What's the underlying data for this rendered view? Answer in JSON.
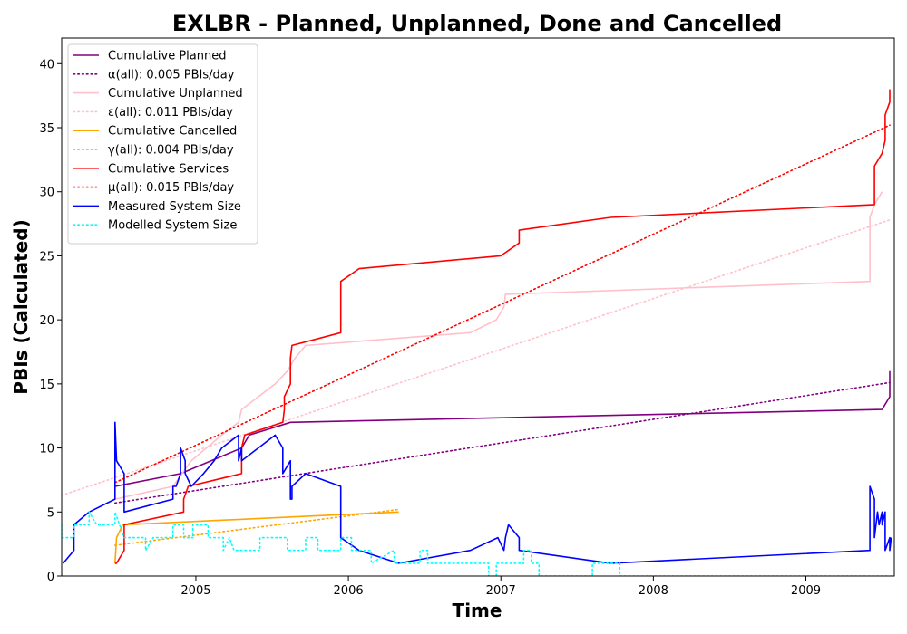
{
  "chart_data": {
    "type": "line",
    "title": "EXLBR - Planned, Unplanned, Done  and Cancelled",
    "xlabel": "Time",
    "ylabel": "PBIs (Calculated)",
    "xlim": [
      2004.12,
      2009.58
    ],
    "ylim": [
      0,
      42
    ],
    "x_ticks": [
      2005,
      2006,
      2007,
      2008,
      2009
    ],
    "x_tick_labels": [
      "2005",
      "2006",
      "2007",
      "2008",
      "2009"
    ],
    "y_ticks": [
      0,
      5,
      10,
      15,
      20,
      25,
      30,
      35,
      40
    ],
    "y_tick_labels": [
      "0",
      "5",
      "10",
      "15",
      "20",
      "25",
      "30",
      "35",
      "40"
    ],
    "grid": false,
    "legend_position": "top-left",
    "series": [
      {
        "name": "Cumulative Planned",
        "color": "#800080",
        "style": "solid",
        "points": [
          [
            2004.47,
            7
          ],
          [
            2004.9,
            8
          ],
          [
            2005.3,
            10
          ],
          [
            2005.35,
            11
          ],
          [
            2005.62,
            12
          ],
          [
            2009.5,
            13
          ],
          [
            2009.55,
            14
          ],
          [
            2009.55,
            16
          ]
        ]
      },
      {
        "name": "α(all): 0.005 PBIs/day",
        "color": "#800080",
        "style": "dotted",
        "points": [
          [
            2004.47,
            5.7
          ],
          [
            2009.55,
            15.1
          ]
        ]
      },
      {
        "name": "Cumulative Unplanned",
        "color": "#ffc0cb",
        "style": "solid",
        "points": [
          [
            2004.47,
            6
          ],
          [
            2004.85,
            7
          ],
          [
            2004.97,
            9
          ],
          [
            2005.17,
            11
          ],
          [
            2005.28,
            12
          ],
          [
            2005.3,
            13
          ],
          [
            2005.52,
            15
          ],
          [
            2005.6,
            16
          ],
          [
            2005.65,
            17
          ],
          [
            2005.72,
            18
          ],
          [
            2006.8,
            19
          ],
          [
            2006.97,
            20
          ],
          [
            2007.02,
            21
          ],
          [
            2007.03,
            22
          ],
          [
            2009.42,
            23
          ],
          [
            2009.42,
            28
          ],
          [
            2009.45,
            29
          ],
          [
            2009.5,
            30
          ]
        ]
      },
      {
        "name": "ε(all): 0.011 PBIs/day",
        "color": "#ffc0cb",
        "style": "dotted",
        "points": [
          [
            2004.12,
            6.3
          ],
          [
            2009.55,
            27.8
          ]
        ]
      },
      {
        "name": "Cumulative Cancelled",
        "color": "#ffa500",
        "style": "solid",
        "points": [
          [
            2004.47,
            1
          ],
          [
            2004.48,
            3
          ],
          [
            2004.52,
            4
          ],
          [
            2006.33,
            5
          ]
        ]
      },
      {
        "name": "γ(all): 0.004 PBIs/day",
        "color": "#ffa500",
        "style": "dotted",
        "points": [
          [
            2004.47,
            2.4
          ],
          [
            2006.33,
            5.2
          ]
        ]
      },
      {
        "name": "Cumulative Services",
        "color": "#ff0000",
        "style": "solid",
        "points": [
          [
            2004.47,
            1
          ],
          [
            2004.48,
            1
          ],
          [
            2004.53,
            2
          ],
          [
            2004.53,
            4
          ],
          [
            2004.92,
            5
          ],
          [
            2004.92,
            6
          ],
          [
            2004.95,
            7
          ],
          [
            2005.3,
            8
          ],
          [
            2005.3,
            10
          ],
          [
            2005.32,
            11
          ],
          [
            2005.57,
            12
          ],
          [
            2005.58,
            13
          ],
          [
            2005.58,
            14
          ],
          [
            2005.62,
            15
          ],
          [
            2005.62,
            17
          ],
          [
            2005.63,
            18
          ],
          [
            2005.95,
            19
          ],
          [
            2005.95,
            20
          ],
          [
            2005.95,
            23
          ],
          [
            2006.07,
            24
          ],
          [
            2007.0,
            25
          ],
          [
            2007.12,
            26
          ],
          [
            2007.12,
            27
          ],
          [
            2007.72,
            28
          ],
          [
            2009.45,
            29
          ],
          [
            2009.45,
            30
          ],
          [
            2009.45,
            32
          ],
          [
            2009.5,
            33
          ],
          [
            2009.52,
            34
          ],
          [
            2009.52,
            36
          ],
          [
            2009.55,
            37
          ],
          [
            2009.55,
            38
          ]
        ]
      },
      {
        "name": "μ(all): 0.015 PBIs/day",
        "color": "#ff0000",
        "style": "dotted",
        "points": [
          [
            2004.47,
            7.3
          ],
          [
            2009.55,
            35.2
          ]
        ]
      },
      {
        "name": "Measured System Size",
        "color": "#0000ff",
        "style": "solid",
        "points": [
          [
            2004.13,
            1
          ],
          [
            2004.2,
            2
          ],
          [
            2004.2,
            4
          ],
          [
            2004.3,
            5
          ],
          [
            2004.47,
            6
          ],
          [
            2004.47,
            12
          ],
          [
            2004.48,
            9
          ],
          [
            2004.53,
            8
          ],
          [
            2004.53,
            5
          ],
          [
            2004.85,
            6
          ],
          [
            2004.85,
            7
          ],
          [
            2004.87,
            7
          ],
          [
            2004.9,
            8
          ],
          [
            2004.9,
            10
          ],
          [
            2004.93,
            9
          ],
          [
            2004.93,
            8
          ],
          [
            2004.97,
            7
          ],
          [
            2005.05,
            8
          ],
          [
            2005.12,
            9
          ],
          [
            2005.17,
            10
          ],
          [
            2005.28,
            11
          ],
          [
            2005.28,
            9
          ],
          [
            2005.3,
            10
          ],
          [
            2005.3,
            9
          ],
          [
            2005.52,
            11
          ],
          [
            2005.57,
            10
          ],
          [
            2005.57,
            8
          ],
          [
            2005.62,
            9
          ],
          [
            2005.62,
            6
          ],
          [
            2005.63,
            6
          ],
          [
            2005.63,
            7
          ],
          [
            2005.72,
            8
          ],
          [
            2005.95,
            7
          ],
          [
            2005.95,
            6
          ],
          [
            2005.95,
            3
          ],
          [
            2006.07,
            2
          ],
          [
            2006.33,
            1
          ],
          [
            2006.8,
            2
          ],
          [
            2006.98,
            3
          ],
          [
            2007.02,
            2
          ],
          [
            2007.03,
            3
          ],
          [
            2007.05,
            4
          ],
          [
            2007.12,
            3
          ],
          [
            2007.12,
            2
          ],
          [
            2007.72,
            1
          ],
          [
            2009.42,
            2
          ],
          [
            2009.42,
            7
          ],
          [
            2009.45,
            6
          ],
          [
            2009.45,
            3
          ],
          [
            2009.47,
            5
          ],
          [
            2009.48,
            4
          ],
          [
            2009.5,
            5
          ],
          [
            2009.5,
            4
          ],
          [
            2009.52,
            5
          ],
          [
            2009.52,
            2
          ],
          [
            2009.55,
            3
          ],
          [
            2009.55,
            2
          ],
          [
            2009.56,
            3
          ]
        ]
      },
      {
        "name": "Modelled System Size",
        "color": "#00ffff",
        "style": "dotted",
        "points": [
          [
            2004.12,
            4
          ],
          [
            2004.12,
            3
          ],
          [
            2004.2,
            3
          ],
          [
            2004.2,
            4
          ],
          [
            2004.3,
            4
          ],
          [
            2004.3,
            5
          ],
          [
            2004.35,
            4
          ],
          [
            2004.47,
            4
          ],
          [
            2004.47,
            5
          ],
          [
            2004.53,
            3
          ],
          [
            2004.67,
            3
          ],
          [
            2004.67,
            2
          ],
          [
            2004.72,
            3
          ],
          [
            2004.85,
            3
          ],
          [
            2004.85,
            4
          ],
          [
            2004.92,
            4
          ],
          [
            2004.92,
            3
          ],
          [
            2004.98,
            3
          ],
          [
            2004.98,
            4
          ],
          [
            2005.08,
            4
          ],
          [
            2005.08,
            3
          ],
          [
            2005.18,
            3
          ],
          [
            2005.18,
            2
          ],
          [
            2005.22,
            3
          ],
          [
            2005.25,
            2
          ],
          [
            2005.42,
            2
          ],
          [
            2005.42,
            3
          ],
          [
            2005.6,
            3
          ],
          [
            2005.6,
            2
          ],
          [
            2005.72,
            2
          ],
          [
            2005.72,
            3
          ],
          [
            2005.8,
            3
          ],
          [
            2005.8,
            2
          ],
          [
            2005.95,
            2
          ],
          [
            2005.95,
            3
          ],
          [
            2006.02,
            3
          ],
          [
            2006.02,
            2
          ],
          [
            2006.15,
            2
          ],
          [
            2006.15,
            1
          ],
          [
            2006.3,
            2
          ],
          [
            2006.3,
            1
          ],
          [
            2006.47,
            1
          ],
          [
            2006.47,
            2
          ],
          [
            2006.52,
            2
          ],
          [
            2006.52,
            1
          ],
          [
            2006.92,
            1
          ],
          [
            2006.92,
            0
          ],
          [
            2006.97,
            0
          ],
          [
            2006.97,
            1
          ],
          [
            2007.15,
            1
          ],
          [
            2007.15,
            2
          ],
          [
            2007.2,
            2
          ],
          [
            2007.2,
            1
          ],
          [
            2007.25,
            1
          ],
          [
            2007.25,
            0
          ],
          [
            2007.6,
            0
          ],
          [
            2007.6,
            1
          ],
          [
            2007.78,
            1
          ],
          [
            2007.78,
            0
          ],
          [
            2009.58,
            0
          ]
        ]
      }
    ]
  }
}
